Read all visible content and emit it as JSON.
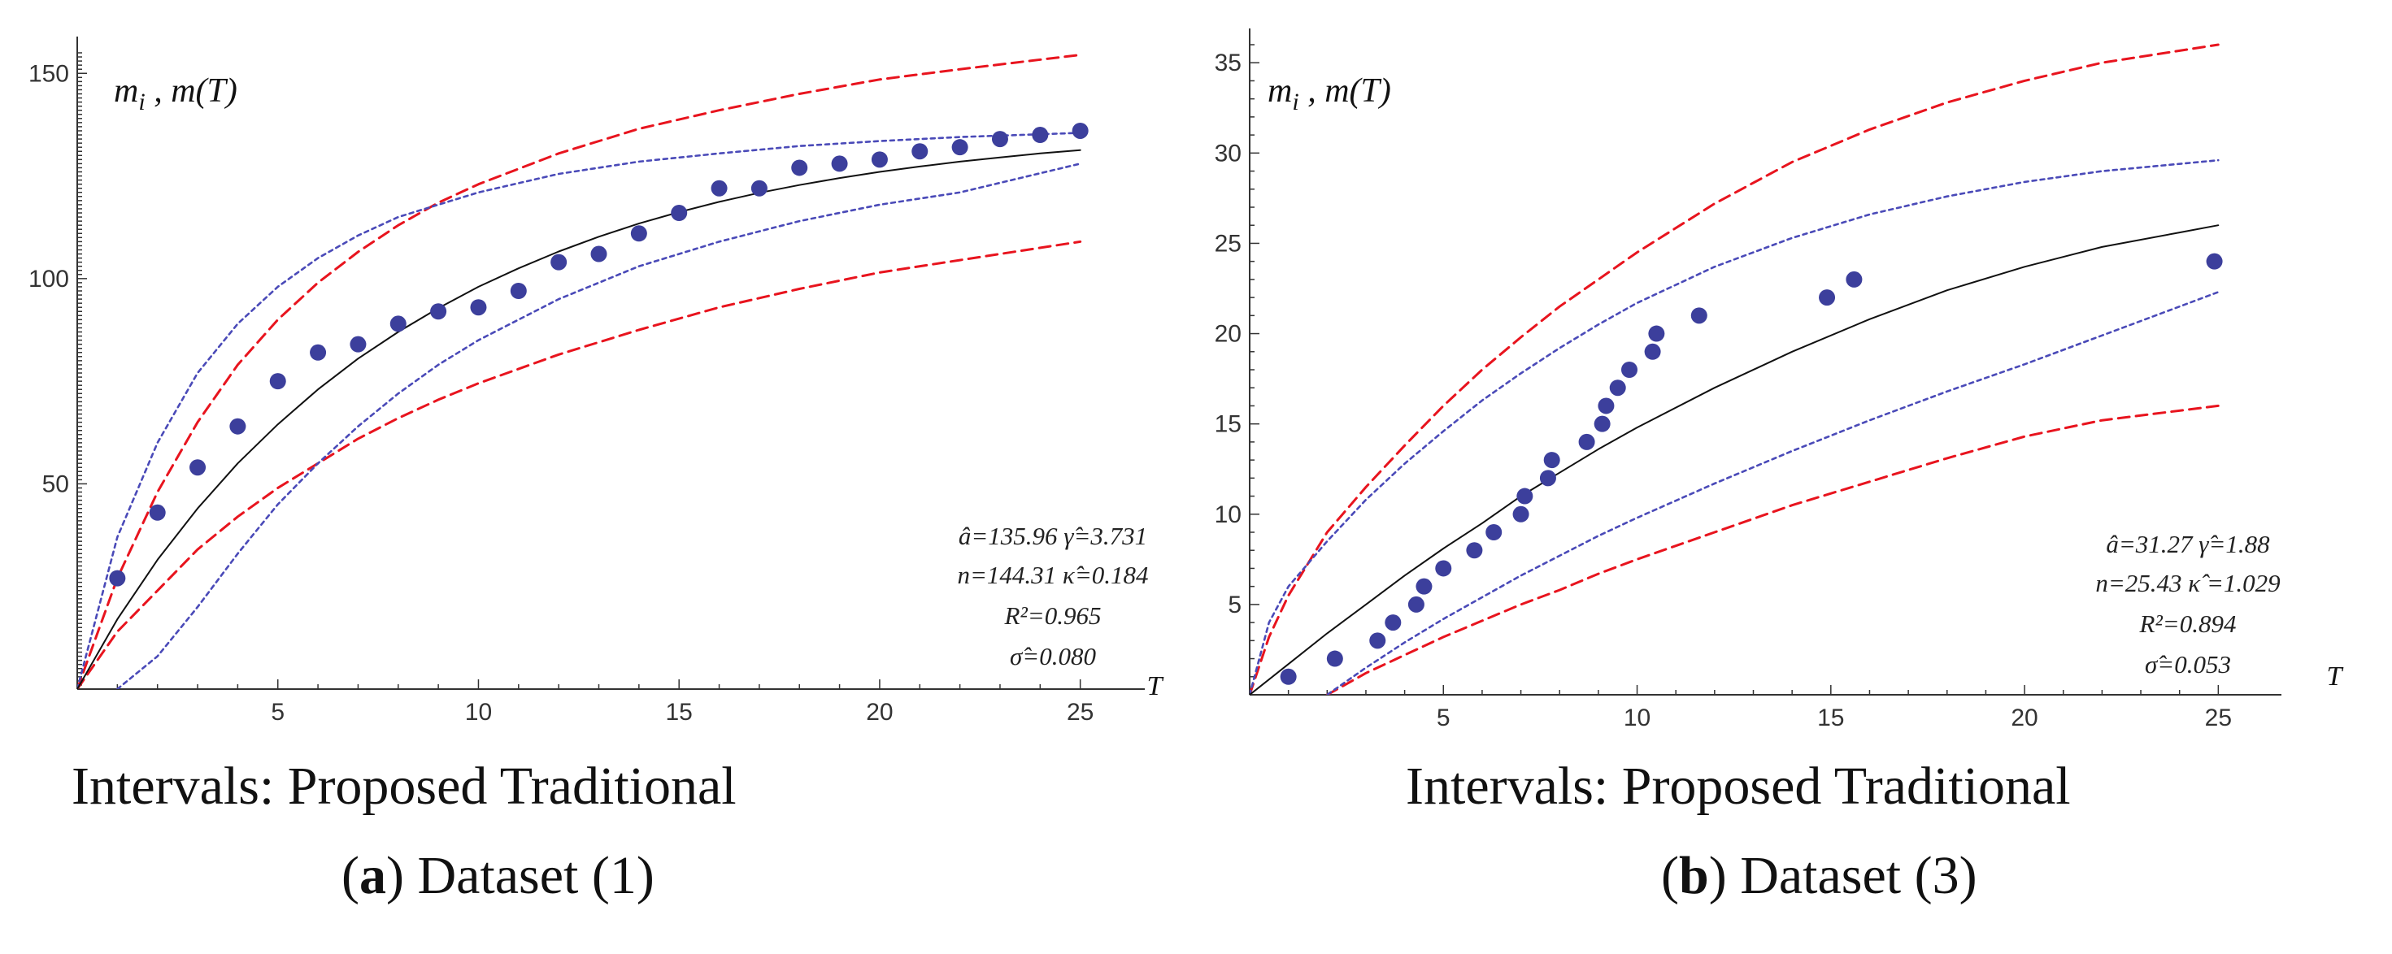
{
  "chart_data": [
    {
      "type": "scatter",
      "panel": "a",
      "ylabel": "m_i , m(T)",
      "xlabel": "T",
      "xlim": [
        0,
        26
      ],
      "ylim": [
        0,
        155
      ],
      "xticks": [
        "5",
        "10",
        "15",
        "20",
        "25"
      ],
      "yticks": [
        "50",
        "100",
        "150"
      ],
      "annotations": [
        "â=135.96  γ̂=3.731",
        "n=144.31  κ̂=0.184",
        "R²=0.965",
        "σ̂=0.080"
      ],
      "observed": {
        "x": [
          1,
          2,
          3,
          4,
          5,
          6,
          7,
          8,
          9,
          10,
          11,
          12,
          13,
          14,
          15,
          16,
          17,
          18,
          19,
          20,
          21,
          22,
          23,
          24,
          25
        ],
        "y": [
          27,
          43,
          54,
          64,
          75,
          82,
          84,
          89,
          92,
          93,
          97,
          104,
          106,
          111,
          116,
          122,
          122,
          127,
          128,
          129,
          131,
          132,
          134,
          135,
          136
        ]
      },
      "fitted": {
        "x": [
          0,
          1,
          2,
          3,
          4,
          5,
          6,
          7,
          8,
          9,
          10,
          11,
          12,
          13,
          14,
          15,
          16,
          17,
          18,
          19,
          20,
          21,
          22,
          23,
          24,
          25
        ],
        "y": [
          0,
          17,
          31.5,
          44,
          55,
          64.5,
          73,
          80.5,
          87,
          92.8,
          98,
          102.5,
          106.6,
          110.2,
          113.4,
          116.2,
          118.7,
          120.9,
          122.8,
          124.5,
          126,
          127.3,
          128.5,
          129.5,
          130.5,
          131.3
        ]
      },
      "proposed_upper": {
        "x": [
          0,
          1,
          2,
          3,
          4,
          5,
          6,
          7,
          8,
          9,
          10,
          12,
          14,
          16,
          18,
          20,
          22,
          25
        ],
        "y": [
          0,
          37,
          60,
          77,
          89,
          98,
          105,
          110.5,
          115,
          118,
          121,
          125.5,
          128.5,
          130.5,
          132.3,
          133.5,
          134.5,
          135.5
        ]
      },
      "proposed_lower": {
        "x": [
          1,
          2,
          3,
          4,
          5,
          6,
          7,
          8,
          9,
          10,
          12,
          14,
          16,
          18,
          20,
          22,
          25
        ],
        "y": [
          0,
          8,
          20,
          33,
          45,
          55,
          64,
          72,
          79,
          85,
          95,
          103,
          109,
          114,
          118,
          121,
          128
        ]
      },
      "traditional_upper": {
        "x": [
          0,
          1,
          2,
          3,
          4,
          5,
          6,
          7,
          8,
          9,
          10,
          12,
          14,
          16,
          18,
          20,
          22,
          25
        ],
        "y": [
          0,
          27,
          48,
          65,
          79,
          90,
          99,
          106.5,
          113,
          118.5,
          123,
          130.5,
          136.5,
          141,
          145,
          148.5,
          151,
          154.5
        ]
      },
      "traditional_lower": {
        "x": [
          0,
          1,
          2,
          3,
          4,
          5,
          6,
          7,
          8,
          9,
          10,
          12,
          14,
          16,
          18,
          20,
          22,
          25
        ],
        "y": [
          0,
          14,
          24,
          34,
          42,
          49,
          55,
          61,
          66,
          70.5,
          74.5,
          81.5,
          87.5,
          93,
          97.5,
          101.5,
          104.5,
          109
        ]
      }
    },
    {
      "type": "scatter",
      "panel": "b",
      "ylabel": "m_i ,  m(T)",
      "xlabel": "T",
      "xlim": [
        0,
        26
      ],
      "ylim": [
        0,
        36
      ],
      "xticks": [
        "5",
        "10",
        "15",
        "20",
        "25"
      ],
      "yticks": [
        "5",
        "10",
        "15",
        "20",
        "25",
        "30",
        "35"
      ],
      "annotations": [
        "â=31.27  γ̂=1.88",
        "n=25.43  κ̂ =1.029",
        "R²=0.894",
        "σ̂=0.053"
      ],
      "observed": {
        "x": [
          1,
          2.2,
          3.3,
          3.7,
          4.3,
          4.5,
          5,
          5.8,
          6.3,
          7,
          7.1,
          7.7,
          7.8,
          8.7,
          9.1,
          9.2,
          9.5,
          9.8,
          10.4,
          10.5,
          11.6,
          14.9,
          15.6,
          24.9
        ],
        "y": [
          1,
          2,
          3,
          4,
          5,
          6,
          7,
          8,
          9,
          10,
          11,
          12,
          13,
          14,
          15,
          16,
          17,
          18,
          19,
          20,
          21,
          22,
          23,
          24
        ]
      },
      "fitted": {
        "x": [
          0,
          1,
          2,
          3,
          4,
          5,
          6,
          7,
          8,
          9,
          10,
          12,
          14,
          16,
          18,
          20,
          22,
          24,
          25
        ],
        "y": [
          0,
          1.7,
          3.4,
          5,
          6.6,
          8.1,
          9.5,
          11,
          12.3,
          13.6,
          14.8,
          17,
          19,
          20.8,
          22.4,
          23.7,
          24.8,
          25.6,
          26
        ]
      },
      "proposed_upper": {
        "x": [
          0,
          0.5,
          1,
          2,
          3,
          4,
          5,
          6,
          7,
          8,
          9,
          10,
          12,
          14,
          16,
          18,
          20,
          22,
          25
        ],
        "y": [
          0,
          4,
          6,
          8.5,
          10.8,
          12.8,
          14.6,
          16.3,
          17.8,
          19.2,
          20.5,
          21.7,
          23.7,
          25.3,
          26.6,
          27.6,
          28.4,
          29,
          29.6
        ]
      },
      "proposed_lower": {
        "x": [
          1.6,
          2,
          3,
          4,
          5,
          6,
          7,
          8,
          9,
          10,
          12,
          14,
          16,
          18,
          20,
          22,
          25
        ],
        "y": [
          -1,
          0,
          1.5,
          2.9,
          4.2,
          5.4,
          6.6,
          7.7,
          8.8,
          9.8,
          11.7,
          13.5,
          15.2,
          16.8,
          18.3,
          19.9,
          22.3
        ]
      },
      "traditional_upper": {
        "x": [
          0,
          0.5,
          1,
          2,
          3,
          4,
          5,
          6,
          7,
          8,
          9,
          10,
          12,
          14,
          16,
          18,
          20,
          22,
          25
        ],
        "y": [
          0,
          3.2,
          5.5,
          9,
          11.5,
          13.8,
          16,
          18,
          19.8,
          21.5,
          23,
          24.5,
          27.2,
          29.5,
          31.3,
          32.8,
          34,
          35,
          36
        ]
      },
      "traditional_lower": {
        "x": [
          2,
          3,
          4,
          5,
          6,
          7,
          8,
          9,
          10,
          12,
          14,
          16,
          18,
          20,
          22,
          25
        ],
        "y": [
          0,
          1.2,
          2.2,
          3.2,
          4.1,
          5,
          5.8,
          6.7,
          7.5,
          9,
          10.5,
          11.8,
          13.1,
          14.3,
          15.2,
          16
        ]
      }
    }
  ],
  "legend": {
    "panel_a": "Intervals: Proposed Traditional",
    "panel_b": "Intervals: Proposed Traditional"
  },
  "captions": {
    "panel_a_letter": "a",
    "panel_a_text": " Dataset (1)",
    "panel_b_letter": "b",
    "panel_b_text": " Dataset (3)"
  },
  "colors": {
    "observed": "#3c3f9c",
    "fitted": "#111111",
    "proposed": "#4a4ab8",
    "traditional": "#e8141e",
    "axis": "#333333"
  }
}
